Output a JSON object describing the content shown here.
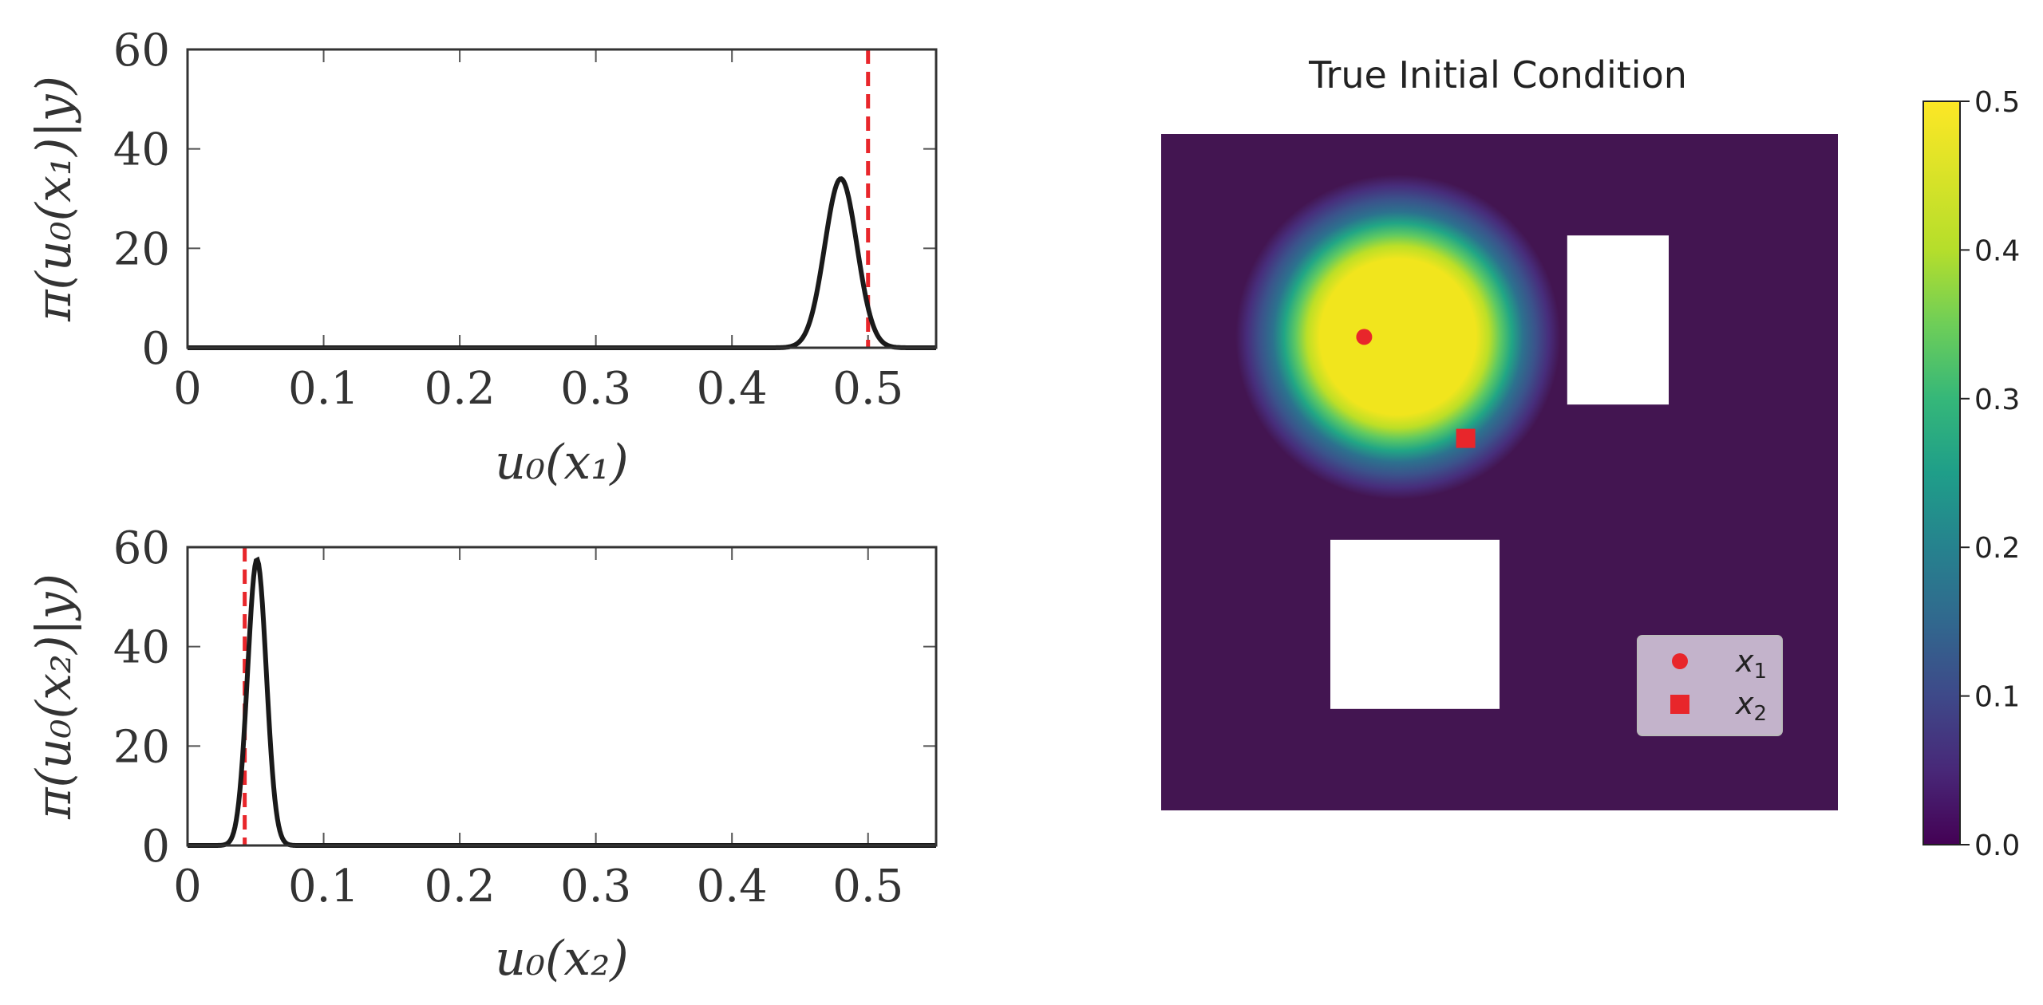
{
  "colors": {
    "density_line": "#1a1a1a",
    "truth_line": "#e8262b",
    "marker": "#e8262b",
    "background_field": "#431551",
    "legend_bg": "#c3b3cb"
  },
  "chart_data": [
    {
      "type": "line",
      "xlabel": "u₀(x₁)",
      "ylabel": "π(u₀(x₁)|y)",
      "xlim": [
        0,
        0.55
      ],
      "ylim": [
        0,
        60
      ],
      "xticks": [
        "0",
        "0.1",
        "0.2",
        "0.3",
        "0.4",
        "0.5"
      ],
      "xtick_values": [
        0,
        0.1,
        0.2,
        0.3,
        0.4,
        0.5
      ],
      "yticks": [
        "0",
        "20",
        "40",
        "60"
      ],
      "ytick_values": [
        0,
        20,
        40,
        60
      ],
      "density": {
        "mean": 0.48,
        "std": 0.0118,
        "peak": 34
      },
      "truth_x": 0.5,
      "grid": false
    },
    {
      "type": "line",
      "xlabel": "u₀(x₂)",
      "ylabel": "π(u₀(x₂)|y)",
      "xlim": [
        0,
        0.55
      ],
      "ylim": [
        0,
        60
      ],
      "xticks": [
        "0",
        "0.1",
        "0.2",
        "0.3",
        "0.4",
        "0.5"
      ],
      "xtick_values": [
        0,
        0.1,
        0.2,
        0.3,
        0.4,
        0.5
      ],
      "yticks": [
        "0",
        "20",
        "40",
        "60"
      ],
      "ytick_values": [
        0,
        20,
        40,
        60
      ],
      "density": {
        "mean": 0.051,
        "std": 0.0069,
        "peak": 57.5
      },
      "truth_x": 0.042,
      "grid": false
    },
    {
      "type": "heatmap",
      "title": "True Initial Condition",
      "domain": [
        0,
        1
      ],
      "field": {
        "kind": "radial-blob",
        "center": [
          0.35,
          0.3
        ],
        "plateau_value": 0.5,
        "background_value": 0.0
      },
      "obstacles": [
        {
          "x": [
            0.6,
            0.75
          ],
          "y": [
            0.15,
            0.4
          ]
        },
        {
          "x": [
            0.25,
            0.5
          ],
          "y": [
            0.6,
            0.85
          ]
        }
      ],
      "points": [
        {
          "name": "x_1",
          "marker": "circle",
          "x": 0.3,
          "y": 0.3
        },
        {
          "name": "x_2",
          "marker": "square",
          "x": 0.45,
          "y": 0.45
        }
      ],
      "legend": {
        "placement": "bottom-right",
        "entries": [
          "x",
          "x"
        ],
        "subscripts": [
          "1",
          "2"
        ]
      },
      "colorbar": {
        "range": [
          0,
          0.5
        ],
        "ticks": [
          "0.0",
          "0.1",
          "0.2",
          "0.3",
          "0.4",
          "0.5"
        ],
        "tick_values": [
          0.0,
          0.1,
          0.2,
          0.3,
          0.4,
          0.5
        ],
        "colormap": "viridis"
      }
    }
  ]
}
